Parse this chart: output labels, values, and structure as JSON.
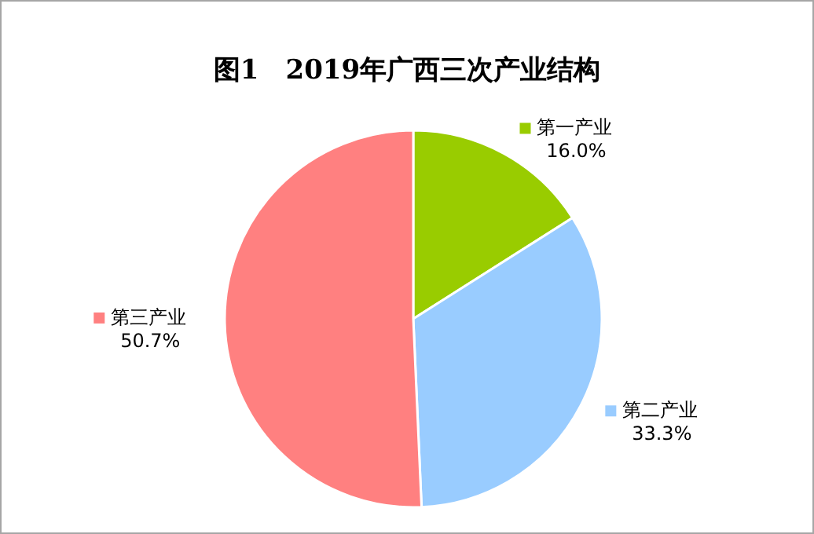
{
  "chart_data": {
    "type": "pie",
    "title": "图1　2019年广西三次产业结构",
    "categories": [
      "第一产业",
      "第二产业",
      "第三产业"
    ],
    "values": [
      16.0,
      33.3,
      50.7
    ],
    "value_labels": [
      "16.0%",
      "33.3%",
      "50.7%"
    ],
    "colors": [
      "#99cc00",
      "#99ccff",
      "#ff8080"
    ],
    "legend": "right"
  }
}
